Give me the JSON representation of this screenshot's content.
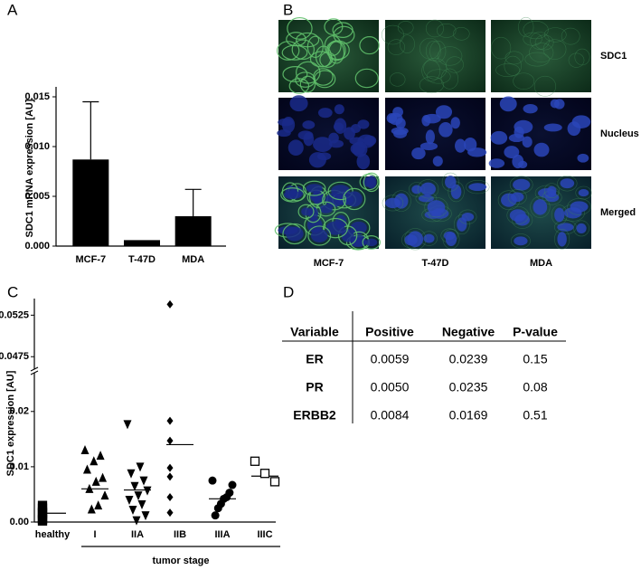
{
  "panel_labels": [
    "A",
    "B",
    "C",
    "D"
  ],
  "chart_data": [
    {
      "type": "bar",
      "ylabel": "SDC1 mRNA expression [AU]",
      "categories": [
        "MCF-7",
        "T-47D",
        "MDA"
      ],
      "values": [
        0.0087,
        0.0006,
        0.003
      ],
      "errors": [
        0.0058,
        null,
        0.0027
      ],
      "color": "#000000",
      "ylim": [
        0,
        0.016
      ],
      "yticks": [
        {
          "value": 0,
          "label": "0.000"
        },
        {
          "value": 0.005,
          "label": "0.005"
        },
        {
          "value": 0.01,
          "label": "0.010"
        },
        {
          "value": 0.015,
          "label": "0.015"
        }
      ]
    },
    {
      "type": "strip",
      "ylabel": "SDC1 expression [AU]",
      "xlabel": "tumor stage",
      "categories": [
        "healthy",
        "I",
        "IIA",
        "IIB",
        "IIIA",
        "IIIC"
      ],
      "markers": [
        "square",
        "triangle-up",
        "triangle-down",
        "diamond",
        "circle",
        "open-square"
      ],
      "points": [
        [
          0.003,
          0.0025,
          0.0018,
          0.0015,
          0.0008,
          0.0005,
          0.0002
        ],
        [
          0.013,
          0.012,
          0.011,
          0.0095,
          0.008,
          0.0073,
          0.006,
          0.0048,
          0.003,
          0.0023
        ],
        [
          0.0177,
          0.01,
          0.0088,
          0.0075,
          0.0065,
          0.0057,
          0.0048,
          0.004,
          0.0032,
          0.0022,
          0.0012,
          0.0003
        ],
        [
          0.0538,
          0.0183,
          0.0147,
          0.0098,
          0.0082,
          0.0045,
          0.0017
        ],
        [
          0.0075,
          0.0067,
          0.0053,
          0.0045,
          0.0042,
          0.0033,
          0.0025,
          0.0012
        ],
        [
          0.011,
          0.0088,
          0.0073
        ]
      ],
      "lines": [
        0.0016,
        0.006,
        0.0058,
        0.014,
        0.0042,
        0.0083
      ],
      "ylim": [
        0,
        0.0545
      ],
      "ybreak": [
        0.027,
        0.046
      ],
      "yticks": [
        {
          "value": 0,
          "label": "0.00"
        },
        0.01,
        0.02,
        0.0475,
        0.0525
      ]
    }
  ],
  "images": {
    "rows": [
      "SDC1",
      "Nucleus",
      "Merged"
    ],
    "columns": [
      "MCF-7",
      "T-47D",
      "MDA"
    ]
  },
  "table": {
    "header": [
      "Variable",
      "Positive",
      "Negative",
      "P-value"
    ],
    "rows": [
      [
        "ER",
        "0.0059",
        "0.0239",
        "0.15"
      ],
      [
        "PR",
        "0.0050",
        "0.0235",
        "0.08"
      ],
      [
        "ERBB2",
        "0.0084",
        "0.0169",
        "0.51"
      ]
    ]
  }
}
